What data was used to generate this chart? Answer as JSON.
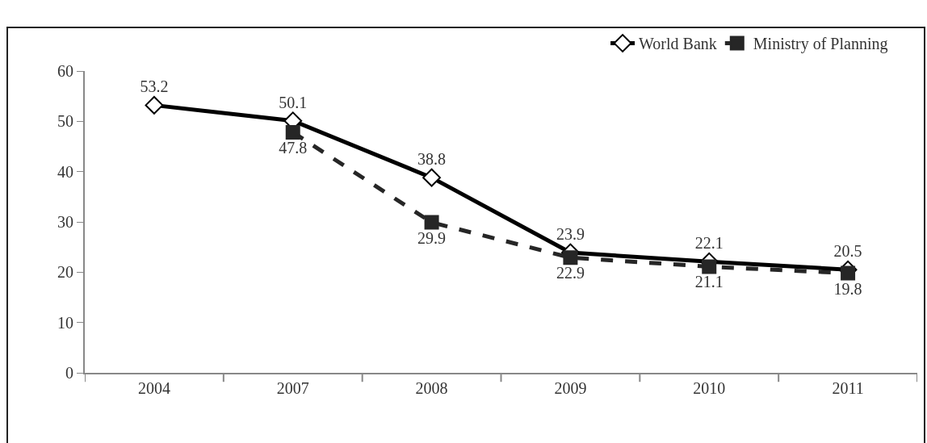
{
  "chart_data": {
    "type": "line",
    "categories": [
      "2004",
      "2007",
      "2008",
      "2009",
      "2010",
      "2011"
    ],
    "series": [
      {
        "name": "World Bank",
        "color": "#000000",
        "marker": "diamond",
        "line_style": "solid",
        "values": [
          53.2,
          50.1,
          38.8,
          23.9,
          22.1,
          20.5
        ]
      },
      {
        "name": "Ministry of Planning",
        "color": "#262626",
        "marker": "square",
        "line_style": "dashed",
        "values": [
          null,
          47.8,
          29.9,
          22.9,
          21.1,
          19.8
        ]
      }
    ],
    "ylim": [
      0,
      60
    ],
    "yticks": [
      0,
      10,
      20,
      30,
      40,
      50,
      60
    ],
    "grid": false,
    "legend": "top right",
    "data_labels": true
  }
}
